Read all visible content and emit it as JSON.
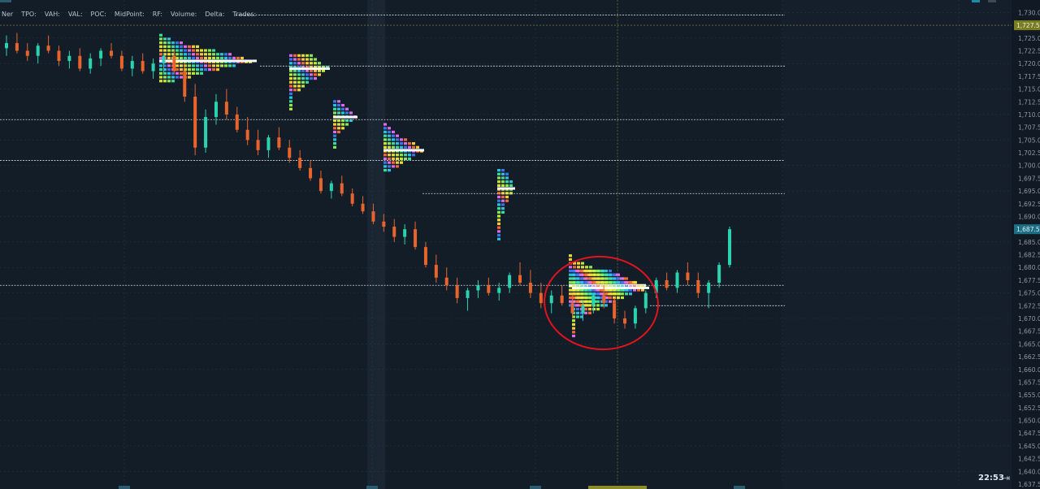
{
  "legend": {
    "items": [
      "Ner",
      "TPO:",
      "VAH:",
      "VAL:",
      "POC:",
      "MidPoint:",
      "RF:",
      "Volume:",
      "Delta:",
      "Trades:"
    ]
  },
  "price_axis": {
    "labels": [
      "1,730.0",
      "1,727.5",
      "1,725.0",
      "1,722.5",
      "1,720.0",
      "1,717.5",
      "1,715.0",
      "1,712.5",
      "1,710.0",
      "1,707.5",
      "1,705.0",
      "1,702.5",
      "1,700.0",
      "1,697.5",
      "1,695.0",
      "1,692.5",
      "1,690.0",
      "1,687.5",
      "1,685.0",
      "1,682.5",
      "1,680.0",
      "1,677.5",
      "1,675.0",
      "1,672.5",
      "1,670.0",
      "1,667.5",
      "1,665.0",
      "1,662.5",
      "1,660.0",
      "1,657.5",
      "1,655.0",
      "1,652.5",
      "1,650.0",
      "1,647.5",
      "1,645.0",
      "1,642.5",
      "1,640.0",
      "1,637.5"
    ],
    "highlight_labels": [
      {
        "text": "1,727.5",
        "price": 1727.5,
        "color": "#7a7e1e"
      },
      {
        "text": "1,687.5",
        "price": 1687.5,
        "color": "#1d6f86"
      }
    ]
  },
  "status": {
    "time": "22:53",
    "arrow_icon": "exit-arrow-icon"
  },
  "colors": {
    "background": "#131d28",
    "grid": "#2a4a66",
    "up_candle": "#2ad3b0",
    "down_candle": "#e8642d",
    "annotation": "#e0141e",
    "poc": "#ffffff",
    "value_area_line": "#cfd6dd"
  },
  "chart": {
    "price_range": [
      1637.5,
      1731.5
    ],
    "candles": [
      [
        1723.0,
        1725.5,
        1721.5,
        1724.0
      ],
      [
        1724.0,
        1726.0,
        1722.0,
        1722.5
      ],
      [
        1722.5,
        1724.0,
        1720.5,
        1721.5
      ],
      [
        1721.5,
        1724.0,
        1720.0,
        1723.5
      ],
      [
        1723.5,
        1725.5,
        1722.0,
        1722.5
      ],
      [
        1722.5,
        1723.5,
        1719.5,
        1720.5
      ],
      [
        1720.5,
        1722.5,
        1719.0,
        1721.5
      ],
      [
        1721.5,
        1723.0,
        1718.5,
        1719.0
      ],
      [
        1719.0,
        1722.0,
        1718.0,
        1721.0
      ],
      [
        1721.0,
        1723.0,
        1719.5,
        1722.5
      ],
      [
        1722.5,
        1724.0,
        1721.0,
        1721.5
      ],
      [
        1721.5,
        1722.5,
        1718.5,
        1719.0
      ],
      [
        1719.0,
        1721.5,
        1717.5,
        1720.5
      ],
      [
        1720.5,
        1722.0,
        1718.0,
        1718.5
      ],
      [
        1718.5,
        1721.0,
        1717.0,
        1720.0
      ],
      [
        1720.0,
        1722.0,
        1718.0,
        1721.5
      ],
      [
        1721.5,
        1722.5,
        1718.0,
        1718.5
      ],
      [
        1718.5,
        1720.0,
        1712.5,
        1713.5
      ],
      [
        1713.5,
        1716.0,
        1702.0,
        1703.5
      ],
      [
        1703.5,
        1711.0,
        1702.5,
        1709.5
      ],
      [
        1709.5,
        1714.0,
        1708.0,
        1712.5
      ],
      [
        1712.5,
        1715.0,
        1709.0,
        1710.0
      ],
      [
        1710.0,
        1711.5,
        1706.5,
        1707.0
      ],
      [
        1707.0,
        1709.5,
        1704.0,
        1705.0
      ],
      [
        1705.0,
        1707.0,
        1702.0,
        1703.0
      ],
      [
        1703.0,
        1706.0,
        1701.5,
        1705.5
      ],
      [
        1705.5,
        1707.5,
        1703.0,
        1703.5
      ],
      [
        1703.5,
        1705.0,
        1700.5,
        1701.5
      ],
      [
        1701.5,
        1703.0,
        1699.0,
        1699.5
      ],
      [
        1699.5,
        1701.0,
        1697.0,
        1697.5
      ],
      [
        1697.5,
        1699.0,
        1694.5,
        1695.0
      ],
      [
        1695.0,
        1697.0,
        1693.5,
        1696.5
      ],
      [
        1696.5,
        1698.0,
        1694.0,
        1694.5
      ],
      [
        1694.5,
        1695.5,
        1692.0,
        1692.5
      ],
      [
        1692.5,
        1694.0,
        1690.5,
        1691.0
      ],
      [
        1691.0,
        1692.5,
        1688.5,
        1689.0
      ],
      [
        1689.0,
        1690.5,
        1687.0,
        1688.0
      ],
      [
        1688.0,
        1689.5,
        1685.0,
        1686.0
      ],
      [
        1686.0,
        1688.5,
        1684.5,
        1687.5
      ],
      [
        1687.5,
        1689.0,
        1683.5,
        1684.0
      ],
      [
        1684.0,
        1685.0,
        1680.0,
        1680.5
      ],
      [
        1680.5,
        1682.5,
        1677.0,
        1678.0
      ],
      [
        1678.0,
        1680.0,
        1675.5,
        1676.5
      ],
      [
        1676.5,
        1678.0,
        1673.0,
        1674.0
      ],
      [
        1674.0,
        1676.0,
        1671.5,
        1675.5
      ],
      [
        1675.5,
        1677.5,
        1674.0,
        1676.5
      ],
      [
        1676.5,
        1678.0,
        1674.5,
        1675.0
      ],
      [
        1675.0,
        1677.0,
        1673.5,
        1676.0
      ],
      [
        1676.0,
        1679.0,
        1675.0,
        1678.5
      ],
      [
        1678.5,
        1681.0,
        1676.5,
        1677.0
      ],
      [
        1677.0,
        1679.5,
        1674.0,
        1675.0
      ],
      [
        1675.0,
        1677.0,
        1672.0,
        1673.0
      ],
      [
        1673.0,
        1675.5,
        1671.0,
        1674.5
      ],
      [
        1674.5,
        1676.5,
        1672.5,
        1673.0
      ],
      [
        1673.0,
        1674.5,
        1670.0,
        1671.0
      ],
      [
        1671.0,
        1673.5,
        1669.5,
        1672.5
      ],
      [
        1672.5,
        1675.0,
        1671.0,
        1674.5
      ],
      [
        1674.5,
        1676.5,
        1672.0,
        1673.0
      ],
      [
        1673.0,
        1674.0,
        1669.0,
        1670.0
      ],
      [
        1670.0,
        1671.5,
        1668.0,
        1669.0
      ],
      [
        1669.0,
        1672.5,
        1668.0,
        1672.0
      ],
      [
        1672.0,
        1675.5,
        1671.0,
        1675.0
      ],
      [
        1675.0,
        1678.0,
        1674.0,
        1677.5
      ],
      [
        1677.5,
        1679.0,
        1675.5,
        1676.0
      ],
      [
        1676.0,
        1679.5,
        1675.0,
        1679.0
      ],
      [
        1679.0,
        1681.0,
        1676.5,
        1677.5
      ],
      [
        1677.5,
        1679.0,
        1674.0,
        1675.0
      ],
      [
        1675.0,
        1677.5,
        1672.0,
        1677.0
      ],
      [
        1677.0,
        1681.0,
        1676.0,
        1680.5
      ],
      [
        1680.5,
        1688.0,
        1680.0,
        1687.5
      ]
    ],
    "value_area_lines": [
      1729.5,
      1719.5,
      1709.0,
      1701.0,
      1694.5,
      1676.5,
      1672.5
    ],
    "profiles": [
      {
        "from": 1716.5,
        "to": 1726.0,
        "poc": 1720.5
      },
      {
        "from": 1711.0,
        "to": 1722.5,
        "poc": 1719.0
      },
      {
        "from": 1703.5,
        "to": 1713.0,
        "poc": 1709.5
      },
      {
        "from": 1699.0,
        "to": 1709.0,
        "poc": 1703.0
      },
      {
        "from": 1685.5,
        "to": 1700.0,
        "poc": 1695.5
      },
      {
        "from": 1672.5,
        "to": 1683.0,
        "poc": 1676.5
      },
      {
        "from": 1666.5,
        "to": 1680.0,
        "poc": 1676.0
      }
    ]
  }
}
